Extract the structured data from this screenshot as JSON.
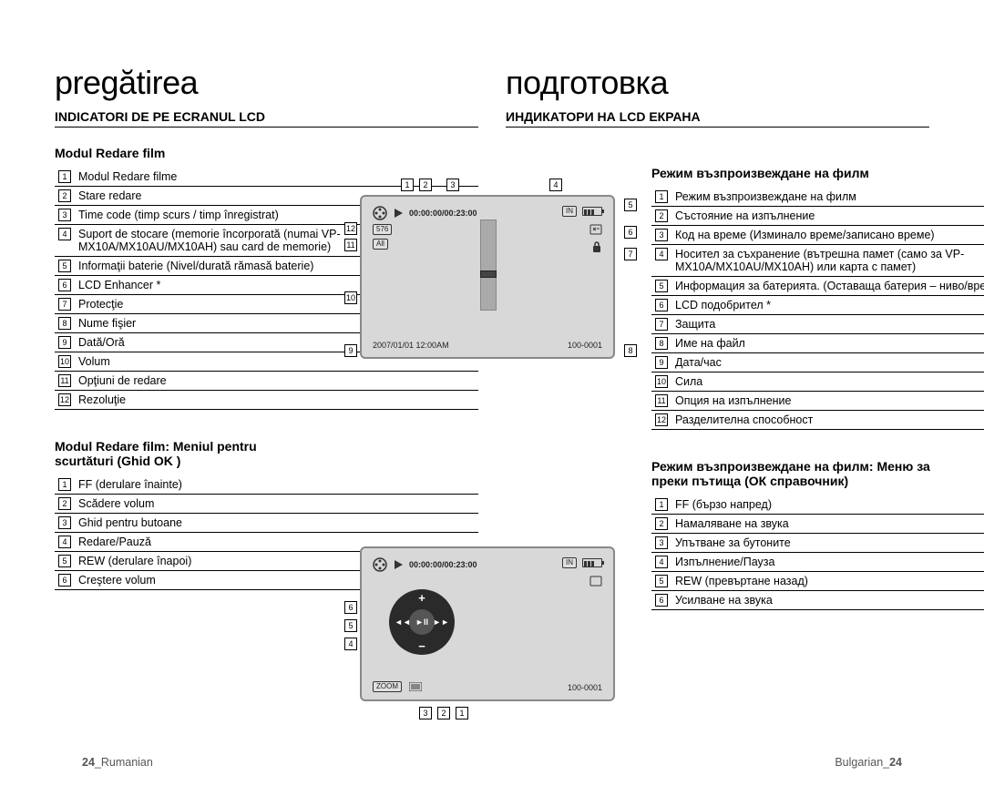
{
  "left": {
    "bigTitle": "pregătirea",
    "subTitle": "INDICATORI DE PE ECRANUL LCD",
    "section1Title": "Modul Redare film",
    "items1": [
      "Modul Redare filme",
      "Stare redare",
      "Time code (timp scurs / timp înregistrat)",
      "Suport de stocare (memorie încorporată (numai VP-MX10A/MX10AU/MX10AH) sau card de memorie)",
      "Informaţii baterie (Nivel/durată rămasă baterie)",
      "LCD Enhancer *",
      "Protecţie",
      "Nume fişier",
      "Dată/Oră",
      "Volum",
      "Opţiuni de redare",
      "Rezoluţie"
    ],
    "section2Title": "Modul Redare film: Meniul pentru scurtături (Ghid OK )",
    "items2": [
      "FF (derulare înainte)",
      "Scădere volum",
      "Ghid pentru butoane",
      "Redare/Pauză",
      "REW (derulare înapoi)",
      "Creştere volum"
    ]
  },
  "right": {
    "bigTitle": "подготовка",
    "subTitle": "ИНДИКАТОРИ НА LCD ЕКРАНА",
    "section1Title": "Режим възпроизвеждане на филм",
    "items1": [
      "Режим възпроизвеждане на филм",
      "Състояние на изпълнение",
      "Код на време (Изминало време/записано време)",
      "Носител за съхранение (вътрешна памет (само за VP-MX10A/MX10AU/MX10AH) или карта с памет)",
      "Информация за батерията. (Оставаща батерия – ниво/време)",
      "LCD подобрител *",
      "Защита",
      "Име на файл",
      "Дата/час",
      "Сила",
      "Опция на изпълнение",
      "Разделителна способност"
    ],
    "section2Title": "Режим възпроизвеждане на филм: Меню за преки пътища (ОК справочник)",
    "items2": [
      "FF (бързо напред)",
      "Намаляване на звука",
      "Упътване за бутоните",
      "Изпълнение/Пауза",
      "REW (превъртане назад)",
      "Усилване на звука"
    ]
  },
  "lcd": {
    "timecode": "00:00:00/00:23:00",
    "in": "IN",
    "res": "576",
    "all": "All",
    "datetime": "2007/01/01  12:00AM",
    "file": "100-0001",
    "zoom": "ZOOM"
  },
  "footer": {
    "left_num": "24",
    "left_lang": "_Rumanian",
    "right_lang": "Bulgarian_",
    "right_num": "24"
  },
  "colors": {
    "lcd_bg": "#d8d8d8",
    "lcd_border": "#888888",
    "circle": "#2a2a2a"
  }
}
